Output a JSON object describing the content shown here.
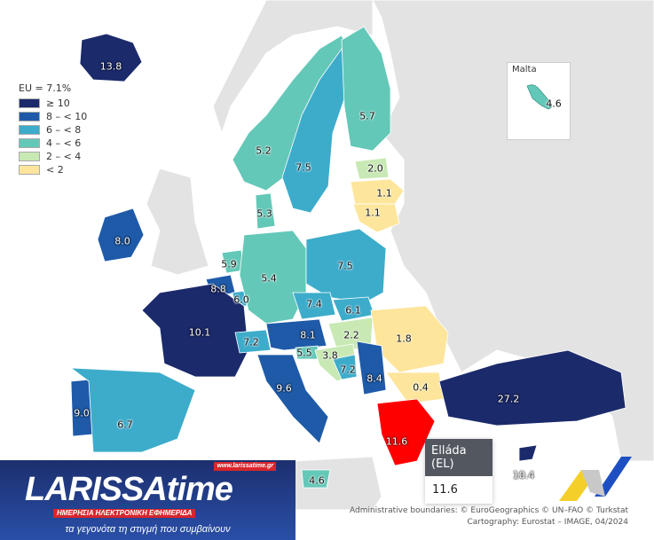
{
  "legend": {
    "title": "EU = 7.1%",
    "classes": [
      {
        "label": "≥ 10",
        "color": "#1b2a6b"
      },
      {
        "label": "8 – < 10",
        "color": "#1e5aa8"
      },
      {
        "label": "6 – < 8",
        "color": "#3daccb"
      },
      {
        "label": "4 – < 6",
        "color": "#63c8b8"
      },
      {
        "label": "2 – < 4",
        "color": "#c8e9b4"
      },
      {
        "label": "< 2",
        "color": "#fde59b"
      }
    ]
  },
  "highlight_color": "#ff0000",
  "regions": [
    {
      "value": "13.8",
      "class": 0
    },
    {
      "value": "5.2",
      "class": 3
    },
    {
      "value": "7.5",
      "class": 2
    },
    {
      "value": "5.7",
      "class": 3
    },
    {
      "value": "2.0",
      "class": 4
    },
    {
      "value": "1.1",
      "class": 5
    },
    {
      "value": "1.1",
      "class": 5
    },
    {
      "value": "5.3",
      "class": 3
    },
    {
      "value": "8.0",
      "class": 1
    },
    {
      "value": "5.9",
      "class": 3
    },
    {
      "value": "8.8",
      "class": 1
    },
    {
      "value": "6.0",
      "class": 2
    },
    {
      "value": "5.4",
      "class": 3
    },
    {
      "value": "7.5",
      "class": 2
    },
    {
      "value": "7.4",
      "class": 2
    },
    {
      "value": "6.1",
      "class": 2
    },
    {
      "value": "10.1",
      "class": 0
    },
    {
      "value": "7.2",
      "class": 2
    },
    {
      "value": "8.1",
      "class": 1
    },
    {
      "value": "2.2",
      "class": 4
    },
    {
      "value": "1.8",
      "class": 5
    },
    {
      "value": "5.5",
      "class": 3
    },
    {
      "value": "3.8",
      "class": 4
    },
    {
      "value": "7.2",
      "class": 2
    },
    {
      "value": "8.4",
      "class": 1
    },
    {
      "value": "0.4",
      "class": 5
    },
    {
      "value": "9.6",
      "class": 1
    },
    {
      "value": "9.0",
      "class": 1
    },
    {
      "value": "6.7",
      "class": 2
    },
    {
      "value": "11.6",
      "class": "highlight"
    },
    {
      "value": "27.2",
      "class": 0
    },
    {
      "value": "10.4",
      "class": 0
    },
    {
      "value": "4.6",
      "class": 3
    }
  ],
  "inset": {
    "name": "Malta",
    "value": "4.6"
  },
  "tooltip": {
    "title": "Elláda (EL)",
    "value": "11.6"
  },
  "credits": {
    "line1": "Administrative boundaries: © EuroGeographics © UN–FAO © Turkstat",
    "line2": "Cartography: Eurostat – IMAGE, 04/2024"
  },
  "logo": {
    "brand": "LARISSAtime",
    "url": "www.larissatime.gr",
    "tagline": "ΗΜΕΡΗΣΙΑ ΗΛΕΚΤΡΟΝΙΚΗ ΕΦΗΜΕΡΙΔΑ",
    "slogan": "τα γεγονότα τη στιγμή που συμβαίνουν"
  }
}
